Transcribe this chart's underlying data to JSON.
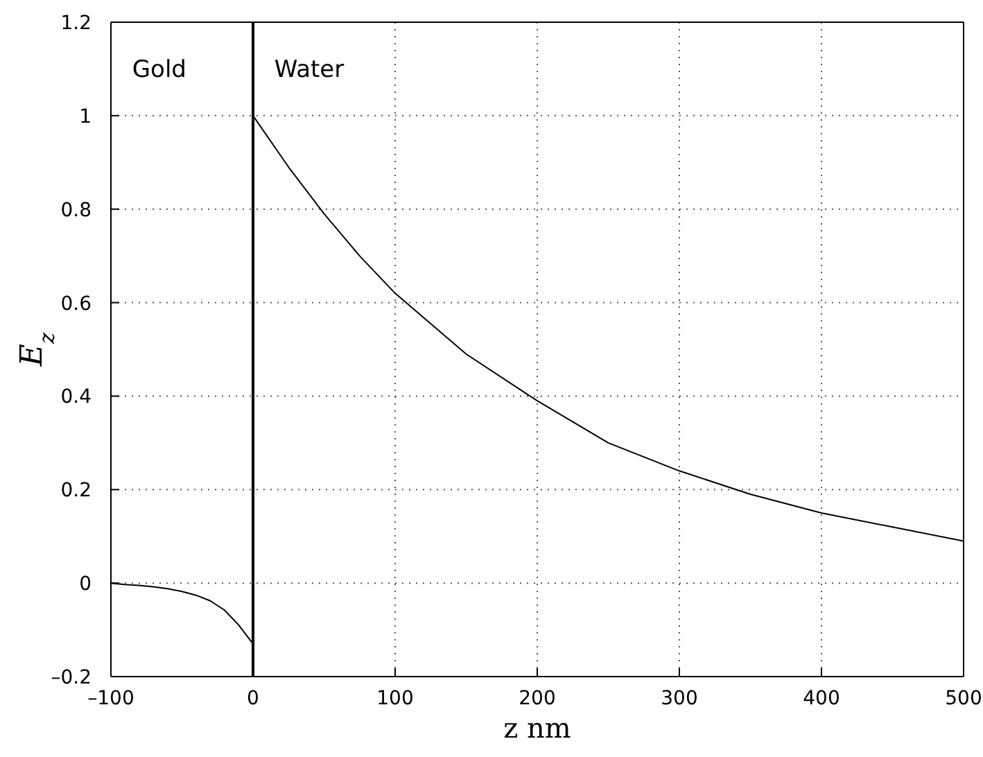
{
  "chart_data": {
    "type": "line",
    "xlabel": "z nm",
    "ylabel": "E$_{z}$",
    "annotations": [
      "Gold",
      "Water"
    ],
    "series": [
      {
        "color": "#000000",
        "x": [
          -100,
          -90,
          -80,
          -70,
          -60,
          -50,
          -40,
          -30,
          -20,
          -10,
          0
        ],
        "values": [
          0,
          -0.003,
          -0.005,
          -0.008,
          -0.012,
          -0.018,
          -0.026,
          -0.038,
          -0.058,
          -0.09,
          -0.13
        ]
      },
      {
        "color": "#000000",
        "x": [
          0,
          25,
          50,
          75,
          100,
          150,
          200,
          250,
          300,
          350,
          400,
          450,
          500
        ],
        "values": [
          1,
          0.89,
          0.79,
          0.7,
          0.62,
          0.49,
          0.39,
          0.3,
          0.24,
          0.19,
          0.15,
          0.12,
          0.09
        ]
      }
    ],
    "ref_lines": [
      {
        "axis": "x",
        "value": 0,
        "color": "#000000"
      }
    ],
    "xlim": [
      -100,
      500
    ],
    "xticks": [
      {
        "value": -100,
        "label": "–100"
      },
      0,
      100,
      200,
      300,
      400,
      500
    ],
    "ylim": [
      -0.2,
      1.2
    ],
    "yticks": [
      {
        "value": -0.2,
        "label": "–0.2"
      },
      0,
      0.2,
      0.4,
      0.6,
      0.8,
      1,
      1.2
    ],
    "grid": true,
    "marker": "none",
    "line_style": "solid"
  }
}
